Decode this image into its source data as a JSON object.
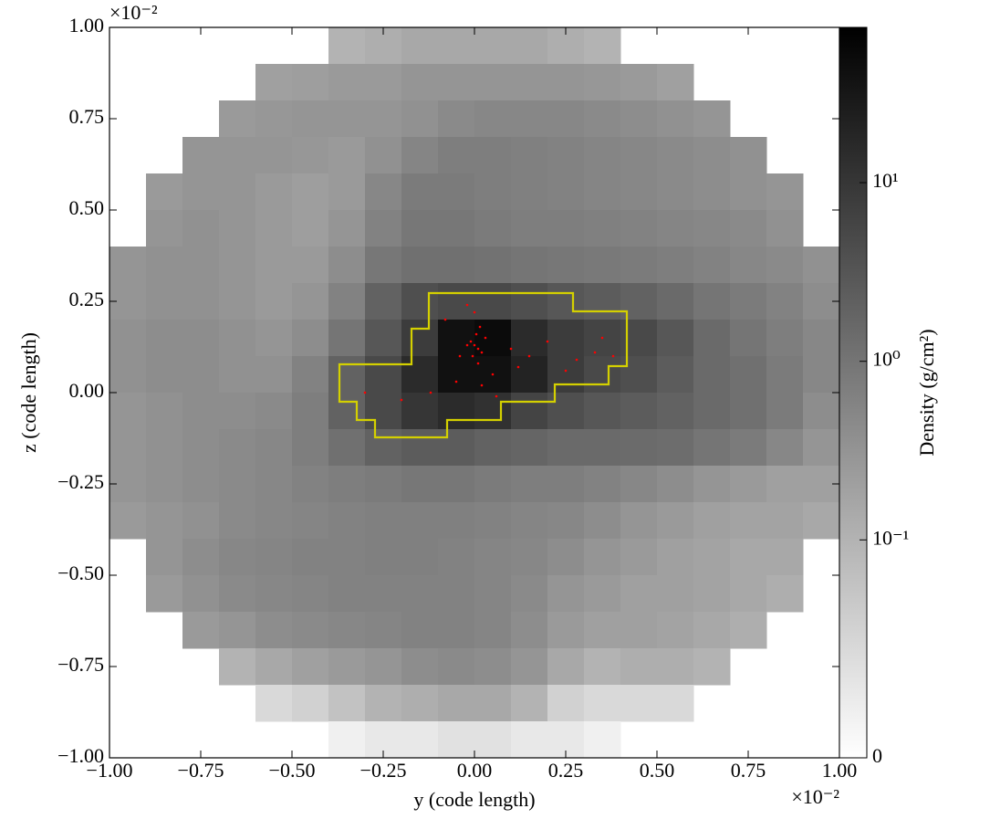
{
  "chart_data": {
    "type": "heatmap",
    "xlabel": "y  (code length)",
    "ylabel": "z  (code length)",
    "x_offset_label": "×10⁻²",
    "y_offset_label": "×10⁻²",
    "xlim": [
      -1,
      1
    ],
    "ylim": [
      -1,
      1
    ],
    "xticks": [
      {
        "value": -1,
        "label": "−1.00"
      },
      {
        "value": -0.75,
        "label": "−0.75"
      },
      {
        "value": -0.5,
        "label": "−0.50"
      },
      {
        "value": -0.25,
        "label": "−0.25"
      },
      {
        "value": 0,
        "label": "0.00"
      },
      0.25,
      {
        "value": 0.5,
        "label": "0.50"
      },
      0.75,
      {
        "value": 1,
        "label": "1.00"
      }
    ],
    "yticks": [
      {
        "value": -1,
        "label": "−1.00"
      },
      {
        "value": -0.75,
        "label": "−0.75"
      },
      {
        "value": -0.5,
        "label": "−0.50"
      },
      {
        "value": -0.25,
        "label": "−0.25"
      },
      {
        "value": 0,
        "label": "0.00"
      },
      0.25,
      {
        "value": 0.5,
        "label": "0.50"
      },
      0.75,
      {
        "value": 1,
        "label": "1.00"
      }
    ],
    "colorbar": {
      "label": "Density  (g/cm²)",
      "scale": "symlog",
      "lim": [
        0,
        74
      ],
      "ticks": [
        0,
        {
          "value": 0.1,
          "label": "10⁻¹"
        },
        {
          "value": 1,
          "label": "10⁰"
        },
        {
          "value": 10,
          "label": "10¹"
        }
      ]
    },
    "z": [
      [
        null,
        null,
        null,
        null,
        null,
        null,
        0.1,
        0.12,
        0.15,
        0.15,
        0.15,
        0.15,
        0.12,
        0.1,
        null,
        null,
        null,
        null,
        null,
        null
      ],
      [
        null,
        null,
        null,
        null,
        0.2,
        0.22,
        0.25,
        0.25,
        0.3,
        0.3,
        0.3,
        0.3,
        0.3,
        0.28,
        0.25,
        0.2,
        null,
        null,
        null,
        null
      ],
      [
        null,
        null,
        null,
        0.25,
        0.28,
        0.3,
        0.3,
        0.3,
        0.35,
        0.45,
        0.5,
        0.5,
        0.5,
        0.45,
        0.4,
        0.35,
        0.3,
        null,
        null,
        null
      ],
      [
        null,
        null,
        0.3,
        0.3,
        0.3,
        0.28,
        0.25,
        0.35,
        0.55,
        0.7,
        0.7,
        0.65,
        0.6,
        0.55,
        0.5,
        0.45,
        0.4,
        0.35,
        null,
        null
      ],
      [
        null,
        0.25,
        0.3,
        0.3,
        0.25,
        0.22,
        0.25,
        0.5,
        0.8,
        0.8,
        0.7,
        0.65,
        0.6,
        0.55,
        0.5,
        0.45,
        0.4,
        0.35,
        0.3,
        null
      ],
      [
        null,
        0.3,
        0.35,
        0.3,
        0.25,
        0.22,
        0.3,
        0.6,
        0.9,
        0.9,
        0.8,
        0.7,
        0.7,
        0.65,
        0.6,
        0.55,
        0.5,
        0.45,
        0.35,
        null
      ],
      [
        0.3,
        0.35,
        0.35,
        0.3,
        0.25,
        0.25,
        0.4,
        0.9,
        1.2,
        1.2,
        1.1,
        1.0,
        0.9,
        0.85,
        0.8,
        0.7,
        0.6,
        0.5,
        0.45,
        0.35
      ],
      [
        0.3,
        0.35,
        0.35,
        0.3,
        0.25,
        0.3,
        0.6,
        2,
        4,
        5,
        5,
        4,
        3,
        2.5,
        2,
        1.5,
        1,
        0.8,
        0.6,
        0.4
      ],
      [
        0.35,
        0.4,
        0.4,
        0.35,
        0.3,
        0.4,
        1,
        3,
        8,
        40,
        50,
        15,
        8,
        6,
        5,
        3,
        1.5,
        1,
        0.7,
        0.5
      ],
      [
        0.35,
        0.4,
        0.4,
        0.35,
        0.35,
        0.6,
        2,
        5,
        15,
        40,
        40,
        20,
        8,
        5,
        4,
        2.5,
        1.5,
        1.2,
        0.8,
        0.5
      ],
      [
        0.3,
        0.35,
        0.4,
        0.4,
        0.45,
        0.7,
        2,
        5,
        10,
        15,
        12,
        6,
        4,
        3,
        2.5,
        2,
        1.5,
        1.2,
        0.8,
        0.4
      ],
      [
        0.3,
        0.35,
        0.4,
        0.45,
        0.5,
        0.7,
        1.2,
        2,
        2.5,
        2.5,
        2,
        1.8,
        1.5,
        1.5,
        1.4,
        1.3,
        1,
        0.8,
        0.5,
        0.3
      ],
      [
        0.3,
        0.35,
        0.4,
        0.45,
        0.5,
        0.6,
        0.7,
        0.8,
        0.9,
        0.9,
        0.8,
        0.7,
        0.7,
        0.6,
        0.5,
        0.4,
        0.3,
        0.25,
        0.2,
        0.2
      ],
      [
        0.25,
        0.3,
        0.35,
        0.45,
        0.5,
        0.55,
        0.6,
        0.65,
        0.65,
        0.65,
        0.6,
        0.55,
        0.5,
        0.4,
        0.3,
        0.25,
        0.2,
        0.18,
        0.18,
        0.15
      ],
      [
        null,
        0.3,
        0.4,
        0.5,
        0.55,
        0.6,
        0.6,
        0.65,
        0.65,
        0.6,
        0.55,
        0.5,
        0.4,
        0.3,
        0.25,
        0.2,
        0.18,
        0.15,
        0.15,
        null
      ],
      [
        null,
        0.25,
        0.35,
        0.45,
        0.5,
        0.55,
        0.6,
        0.6,
        0.6,
        0.6,
        0.55,
        0.45,
        0.3,
        0.25,
        0.2,
        0.2,
        0.18,
        0.15,
        0.12,
        null
      ],
      [
        null,
        null,
        0.25,
        0.3,
        0.4,
        0.45,
        0.5,
        0.55,
        0.6,
        0.6,
        0.55,
        0.4,
        0.25,
        0.2,
        0.2,
        0.18,
        0.15,
        0.12,
        null,
        null
      ],
      [
        null,
        null,
        null,
        0.1,
        0.15,
        0.2,
        0.25,
        0.3,
        0.4,
        0.45,
        0.4,
        0.3,
        0.15,
        0.1,
        0.12,
        0.12,
        0.1,
        null,
        null,
        null
      ],
      [
        null,
        null,
        null,
        null,
        0.05,
        0.06,
        0.08,
        0.1,
        0.12,
        0.15,
        0.15,
        0.1,
        0.06,
        0.05,
        0.05,
        0.05,
        null,
        null,
        null,
        null
      ],
      [
        null,
        null,
        null,
        null,
        null,
        null,
        0.02,
        0.03,
        0.03,
        0.04,
        0.04,
        0.03,
        0.03,
        0.02,
        null,
        null,
        null,
        null,
        null,
        null
      ]
    ],
    "contour_color": "#d4d000",
    "contour_y": [
      -0.125,
      0.27,
      0.27,
      0.4175,
      0.4175,
      0.3675,
      0.3675,
      0.22,
      0.22,
      0.0725,
      0.0725,
      -0.075,
      -0.075,
      -0.2725,
      -0.2725,
      -0.3225,
      -0.3225,
      -0.37,
      -0.37,
      -0.1725,
      -0.1725,
      -0.125
    ],
    "contour_z": [
      0.2725,
      0.2725,
      0.2225,
      0.2225,
      0.0725,
      0.0725,
      0.0225,
      0.0225,
      -0.025,
      -0.025,
      -0.075,
      -0.075,
      -0.1225,
      -0.1225,
      -0.075,
      -0.075,
      -0.025,
      -0.025,
      0.0775,
      0.0775,
      0.175,
      0.175
    ],
    "particle_color": "#ff0000",
    "particle_y": [
      0,
      0.01,
      -0.01,
      0.02,
      0.005,
      -0.005,
      0.01,
      0.015,
      -0.02,
      0.03,
      -0.04,
      0.05,
      0.1,
      0.15,
      0.2,
      0.28,
      0.33,
      0.38,
      -0.08,
      -0.12,
      -0.2,
      -0.3,
      0.0,
      0.06,
      0.12,
      -0.05,
      0.25,
      0.35,
      0.02,
      -0.02
    ],
    "particle_z": [
      0.13,
      0.12,
      0.14,
      0.11,
      0.16,
      0.1,
      0.08,
      0.18,
      0.13,
      0.15,
      0.1,
      0.05,
      0.12,
      0.1,
      0.14,
      0.09,
      0.11,
      0.1,
      0.2,
      0.0,
      -0.02,
      0.0,
      0.22,
      -0.01,
      0.07,
      0.03,
      0.06,
      0.15,
      0.02,
      0.24
    ]
  }
}
